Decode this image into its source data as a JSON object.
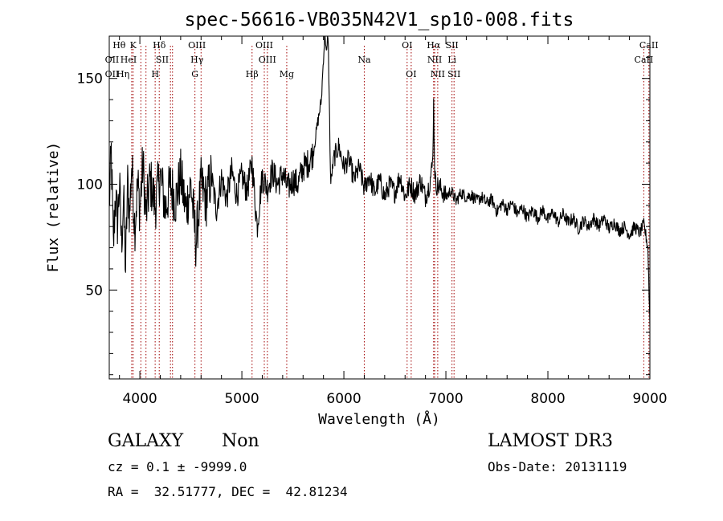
{
  "chart_data": {
    "type": "line",
    "title": "spec-56616-VB035N42V1_sp10-008.fits",
    "xlabel": "Wavelength (Å)",
    "ylabel": "Flux (relative)",
    "xlim": [
      3700,
      9000
    ],
    "ylim": [
      8,
      170
    ],
    "xticks": [
      4000,
      5000,
      6000,
      7000,
      8000,
      9000
    ],
    "xtick_labels": [
      "4000",
      "5000",
      "6000",
      "7000",
      "8000",
      "9000"
    ],
    "yticks": [
      50,
      100,
      150
    ],
    "ytick_labels": [
      "50",
      "100",
      "150"
    ],
    "grid": false,
    "legend": "none",
    "series": [
      {
        "name": "flux",
        "color": "#000000",
        "anchors": [
          [
            3700,
            90
          ],
          [
            3720,
            115
          ],
          [
            3740,
            70
          ],
          [
            3760,
            95
          ],
          [
            3780,
            82
          ],
          [
            3800,
            100
          ],
          [
            3820,
            72
          ],
          [
            3840,
            94
          ],
          [
            3860,
            60
          ],
          [
            3880,
            100
          ],
          [
            3900,
            85
          ],
          [
            3920,
            110
          ],
          [
            3950,
            80
          ],
          [
            3980,
            100
          ],
          [
            4000,
            88
          ],
          [
            4030,
            110
          ],
          [
            4060,
            85
          ],
          [
            4100,
            102
          ],
          [
            4150,
            90
          ],
          [
            4200,
            105
          ],
          [
            4250,
            88
          ],
          [
            4300,
            100
          ],
          [
            4350,
            92
          ],
          [
            4400,
            104
          ],
          [
            4450,
            88
          ],
          [
            4500,
            100
          ],
          [
            4550,
            72
          ],
          [
            4600,
            100
          ],
          [
            4650,
            92
          ],
          [
            4700,
            104
          ],
          [
            4750,
            88
          ],
          [
            4800,
            103
          ],
          [
            4850,
            93
          ],
          [
            4900,
            106
          ],
          [
            4950,
            95
          ],
          [
            5000,
            104
          ],
          [
            5050,
            97
          ],
          [
            5100,
            110
          ],
          [
            5150,
            80
          ],
          [
            5200,
            104
          ],
          [
            5250,
            98
          ],
          [
            5300,
            106
          ],
          [
            5350,
            100
          ],
          [
            5400,
            105
          ],
          [
            5450,
            98
          ],
          [
            5500,
            102
          ],
          [
            5550,
            100
          ],
          [
            5600,
            108
          ],
          [
            5650,
            110
          ],
          [
            5700,
            115
          ],
          [
            5740,
            128
          ],
          [
            5780,
            140
          ],
          [
            5800,
            160
          ],
          [
            5815,
            172
          ],
          [
            5830,
            160
          ],
          [
            5845,
            172
          ],
          [
            5860,
            130
          ],
          [
            5870,
            100
          ],
          [
            5900,
            112
          ],
          [
            5950,
            118
          ],
          [
            6000,
            108
          ],
          [
            6050,
            112
          ],
          [
            6100,
            102
          ],
          [
            6150,
            108
          ],
          [
            6200,
            98
          ],
          [
            6250,
            104
          ],
          [
            6300,
            96
          ],
          [
            6350,
            102
          ],
          [
            6400,
            94
          ],
          [
            6450,
            100
          ],
          [
            6500,
            96
          ],
          [
            6550,
            104
          ],
          [
            6600,
            94
          ],
          [
            6650,
            100
          ],
          [
            6700,
            95
          ],
          [
            6750,
            102
          ],
          [
            6800,
            94
          ],
          [
            6840,
            100
          ],
          [
            6870,
            110
          ],
          [
            6880,
            138
          ],
          [
            6890,
            108
          ],
          [
            6900,
            100
          ],
          [
            6950,
            98
          ],
          [
            7000,
            94
          ],
          [
            7050,
            97
          ],
          [
            7100,
            92
          ],
          [
            7150,
            96
          ],
          [
            7200,
            94
          ],
          [
            7250,
            95
          ],
          [
            7300,
            92
          ],
          [
            7350,
            94
          ],
          [
            7400,
            91
          ],
          [
            7450,
            93
          ],
          [
            7500,
            87
          ],
          [
            7550,
            91
          ],
          [
            7600,
            88
          ],
          [
            7650,
            91
          ],
          [
            7700,
            86
          ],
          [
            7750,
            89
          ],
          [
            7800,
            84
          ],
          [
            7850,
            88
          ],
          [
            7900,
            84
          ],
          [
            7950,
            88
          ],
          [
            8000,
            83
          ],
          [
            8050,
            87
          ],
          [
            8100,
            82
          ],
          [
            8150,
            86
          ],
          [
            8200,
            82
          ],
          [
            8250,
            84
          ],
          [
            8300,
            79
          ],
          [
            8350,
            83
          ],
          [
            8400,
            80
          ],
          [
            8450,
            84
          ],
          [
            8500,
            80
          ],
          [
            8550,
            84
          ],
          [
            8600,
            79
          ],
          [
            8650,
            82
          ],
          [
            8700,
            78
          ],
          [
            8750,
            80
          ],
          [
            8800,
            76
          ],
          [
            8850,
            80
          ],
          [
            8900,
            77
          ],
          [
            8940,
            81
          ],
          [
            8960,
            76
          ],
          [
            8980,
            70
          ],
          [
            9000,
            34
          ]
        ]
      }
    ],
    "line_markers": [
      {
        "name": "OII",
        "wavelength": 3727,
        "row": 2,
        "tick": false
      },
      {
        "name": "OII",
        "wavelength": 3727,
        "row": 1,
        "tick": false
      },
      {
        "name": "Hθ",
        "wavelength": 3797,
        "row": 0,
        "tick": false
      },
      {
        "name": "Hη",
        "wavelength": 3835,
        "row": 2,
        "tick": false
      },
      {
        "name": "HeI",
        "wavelength": 3889,
        "row": 1,
        "tick": false
      },
      {
        "name": "",
        "wavelength": 3920,
        "row": 0,
        "tick": true
      },
      {
        "name": "K",
        "wavelength": 3934,
        "row": 0,
        "tick": true
      },
      {
        "name": "",
        "wavelength": 4010,
        "row": 0,
        "tick": true
      },
      {
        "name": "",
        "wavelength": 4060,
        "row": 0,
        "tick": true
      },
      {
        "name": "H",
        "wavelength": 4150,
        "row": 2,
        "tick": true
      },
      {
        "name": "Hδ",
        "wavelength": 4190,
        "row": 0,
        "tick": true
      },
      {
        "name": "SII",
        "wavelength": 4220,
        "row": 1,
        "tick": false
      },
      {
        "name": "",
        "wavelength": 4300,
        "row": 0,
        "tick": true
      },
      {
        "name": "",
        "wavelength": 4320,
        "row": 0,
        "tick": true
      },
      {
        "name": "G",
        "wavelength": 4540,
        "row": 2,
        "tick": true
      },
      {
        "name": "OIII",
        "wavelength": 4560,
        "row": 0,
        "tick": false
      },
      {
        "name": "Hγ",
        "wavelength": 4560,
        "row": 1,
        "tick": false
      },
      {
        "name": "",
        "wavelength": 4600,
        "row": 0,
        "tick": true
      },
      {
        "name": "Hβ",
        "wavelength": 5100,
        "row": 2,
        "tick": true
      },
      {
        "name": "OIII",
        "wavelength": 5220,
        "row": 0,
        "tick": true
      },
      {
        "name": "OIII",
        "wavelength": 5250,
        "row": 1,
        "tick": true
      },
      {
        "name": "Mg",
        "wavelength": 5440,
        "row": 2,
        "tick": true
      },
      {
        "name": "Na",
        "wavelength": 6200,
        "row": 1,
        "tick": true
      },
      {
        "name": "OI",
        "wavelength": 6620,
        "row": 0,
        "tick": true
      },
      {
        "name": "OI",
        "wavelength": 6660,
        "row": 2,
        "tick": true
      },
      {
        "name": "Hα",
        "wavelength": 6880,
        "row": 0,
        "tick": true
      },
      {
        "name": "NII",
        "wavelength": 6890,
        "row": 1,
        "tick": true
      },
      {
        "name": "NII",
        "wavelength": 6920,
        "row": 2,
        "tick": true
      },
      {
        "name": "SII",
        "wavelength": 7060,
        "row": 0,
        "tick": true
      },
      {
        "name": "Li",
        "wavelength": 7060,
        "row": 1,
        "tick": false
      },
      {
        "name": "SII",
        "wavelength": 7080,
        "row": 2,
        "tick": true
      },
      {
        "name": "CaII",
        "wavelength": 8940,
        "row": 1,
        "tick": true
      },
      {
        "name": "CaII",
        "wavelength": 8990,
        "row": 0,
        "tick": true
      }
    ]
  },
  "footer": {
    "class_label": "GALAXY",
    "subclass_label": "Non",
    "survey_label": "LAMOST DR3",
    "cz_text": "cz = 0.1 ± -9999.0",
    "obs_date_text": "Obs-Date: 20131119",
    "coords_text": "RA =  32.51777, DEC =  42.81234"
  },
  "colors": {
    "line": "#000000",
    "marker": "#a00000",
    "axis": "#000000",
    "background": "#ffffff"
  }
}
